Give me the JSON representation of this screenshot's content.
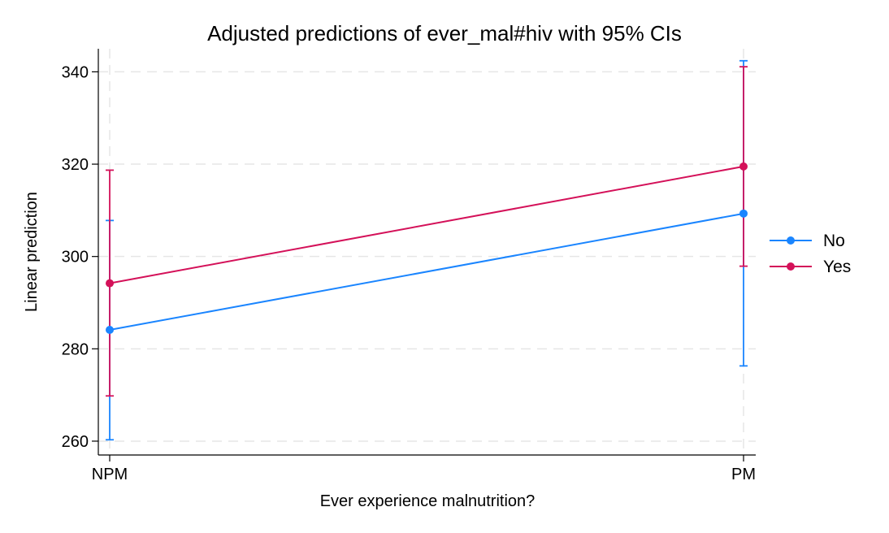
{
  "chart_data": {
    "type": "line",
    "title": "Adjusted predictions of ever_mal#hiv with 95% CIs",
    "xlabel": "Ever experience malnutrition?",
    "ylabel": "Linear prediction",
    "categories": [
      "NPM",
      "PM"
    ],
    "ylim": [
      257,
      345
    ],
    "yticks": [
      260,
      280,
      300,
      320,
      340
    ],
    "grid": true,
    "legend_position": "right",
    "error_bars": "95% CI",
    "series": [
      {
        "name": "No",
        "color": "#1a85ff",
        "values": [
          284.1,
          309.3
        ],
        "ci_low": [
          260.3,
          276.3
        ],
        "ci_high": [
          307.8,
          342.4
        ]
      },
      {
        "name": "Yes",
        "color": "#d41159",
        "values": [
          294.2,
          319.5
        ],
        "ci_low": [
          269.8,
          297.9
        ],
        "ci_high": [
          318.7,
          341.1
        ]
      }
    ]
  }
}
